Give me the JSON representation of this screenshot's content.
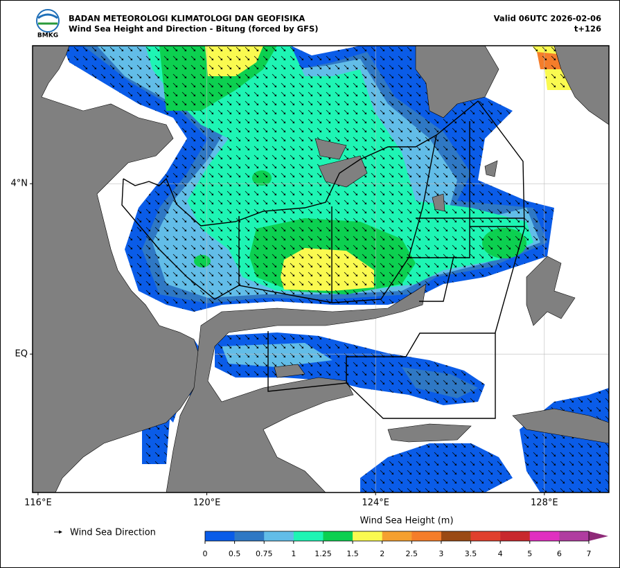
{
  "header": {
    "logo": "BMKG",
    "title": "BADAN METEOROLOGI KLIMATOLOGI DAN GEOFISIKA",
    "subtitle": "Wind Sea Height and Direction - Bitung (forced by GFS)",
    "valid": "Valid 06UTC 2026-02-06",
    "lead": "t+126"
  },
  "map": {
    "lonlim": [
      115.87,
      129.53
    ],
    "latlim": [
      -3.25,
      7.24
    ],
    "lonticks": [
      {
        "value": 116,
        "label": "116°E"
      },
      {
        "value": 120,
        "label": "120°E"
      },
      {
        "value": 124,
        "label": "124°E"
      },
      {
        "value": 128,
        "label": "128°E"
      }
    ],
    "latticks": [
      {
        "value": 4,
        "label": "4°N"
      },
      {
        "value": 0,
        "label": "EQ"
      }
    ],
    "grid": true
  },
  "legend": {
    "arrow_label": "Wind Sea Direction"
  },
  "colorbar": {
    "title": "Wind Sea Height (m)",
    "ticks": [
      0,
      0.5,
      0.75,
      1,
      1.25,
      1.5,
      2,
      2.5,
      3,
      3.5,
      4,
      5,
      6,
      7
    ],
    "colors": [
      "#0a5ce8",
      "#2f78c4",
      "#62bde8",
      "#1ef5b4",
      "#0cd050",
      "#fafa50",
      "#f5a030",
      "#f57d2a",
      "#9a4a14",
      "#e0402d",
      "#c8282d",
      "#e030c0",
      "#b03da0"
    ],
    "extend_color": "#8e2a78"
  }
}
